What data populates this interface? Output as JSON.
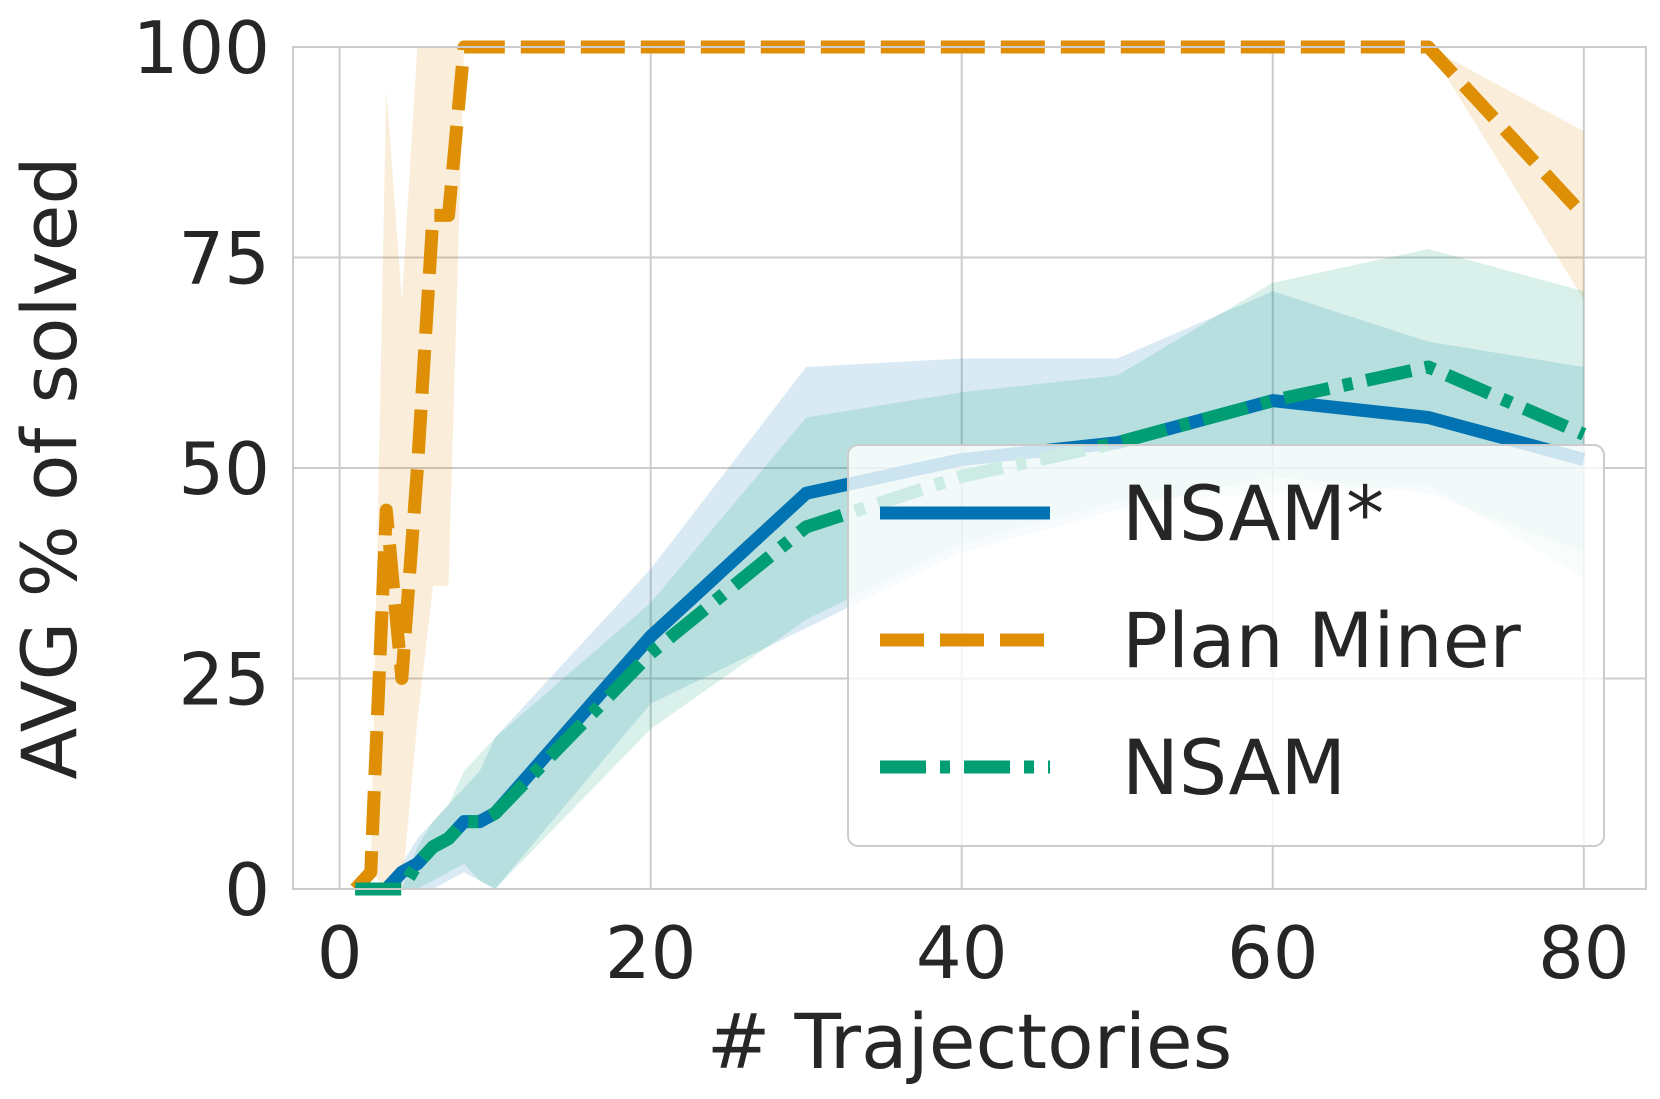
{
  "chart_data": {
    "type": "line",
    "xlabel": "# Trajectories",
    "ylabel": "AVG % of solved",
    "xlim": [
      -3,
      84
    ],
    "ylim": [
      0,
      100
    ],
    "xticks": [
      0,
      20,
      40,
      60,
      80
    ],
    "yticks": [
      0,
      25,
      50,
      75,
      100
    ],
    "grid": true,
    "legend_position": "lower-right",
    "series": [
      {
        "name": "NSAM*",
        "color": "#0173b2",
        "style": "solid",
        "x": [
          1,
          2,
          3,
          4,
          5,
          6,
          7,
          8,
          9,
          10,
          20,
          30,
          40,
          50,
          60,
          70,
          80
        ],
        "y": [
          0,
          0,
          0,
          2,
          3,
          5,
          6,
          8,
          8,
          9,
          30,
          47,
          51,
          53,
          58,
          56,
          51
        ],
        "band_upper": [
          0,
          0,
          0,
          3,
          6,
          8,
          10,
          12,
          14,
          18,
          38,
          62,
          63,
          63,
          71,
          65,
          62
        ],
        "band_lower": [
          0,
          0,
          0,
          0,
          0,
          0,
          1,
          2,
          1,
          0,
          22,
          31,
          40,
          45,
          49,
          47,
          40
        ]
      },
      {
        "name": "Plan Miner",
        "color": "#de8f05",
        "style": "dashed",
        "x": [
          1,
          2,
          3,
          4,
          5,
          6,
          7,
          8,
          9,
          10,
          20,
          30,
          40,
          50,
          60,
          70,
          80
        ],
        "y": [
          0,
          2,
          45,
          25,
          50,
          80,
          80,
          100,
          100,
          100,
          100,
          100,
          100,
          100,
          100,
          100,
          80
        ],
        "band_upper": [
          0,
          2,
          95,
          70,
          100,
          100,
          100,
          100,
          100,
          100,
          100,
          100,
          100,
          100,
          100,
          100,
          70
        ],
        "band_lower": [
          0,
          2,
          0,
          0,
          20,
          36,
          36,
          100,
          100,
          100,
          100,
          100,
          100,
          100,
          100,
          100,
          90
        ]
      },
      {
        "name": "NSAM",
        "color": "#029e73",
        "style": "dashdot",
        "x": [
          1,
          2,
          3,
          4,
          5,
          6,
          7,
          8,
          9,
          10,
          20,
          30,
          40,
          50,
          60,
          70,
          80
        ],
        "y": [
          0,
          0,
          0,
          0,
          3,
          5,
          6,
          8,
          8,
          9,
          28,
          43,
          49,
          53,
          58,
          62,
          54
        ],
        "band_upper": [
          0,
          0,
          0,
          0,
          5,
          8,
          10,
          14,
          16,
          18,
          34,
          56,
          59,
          61,
          72,
          76,
          71
        ],
        "band_lower": [
          0,
          0,
          0,
          0,
          0,
          1,
          2,
          3,
          1,
          0,
          19,
          32,
          41,
          46,
          47,
          48,
          37
        ]
      }
    ]
  }
}
